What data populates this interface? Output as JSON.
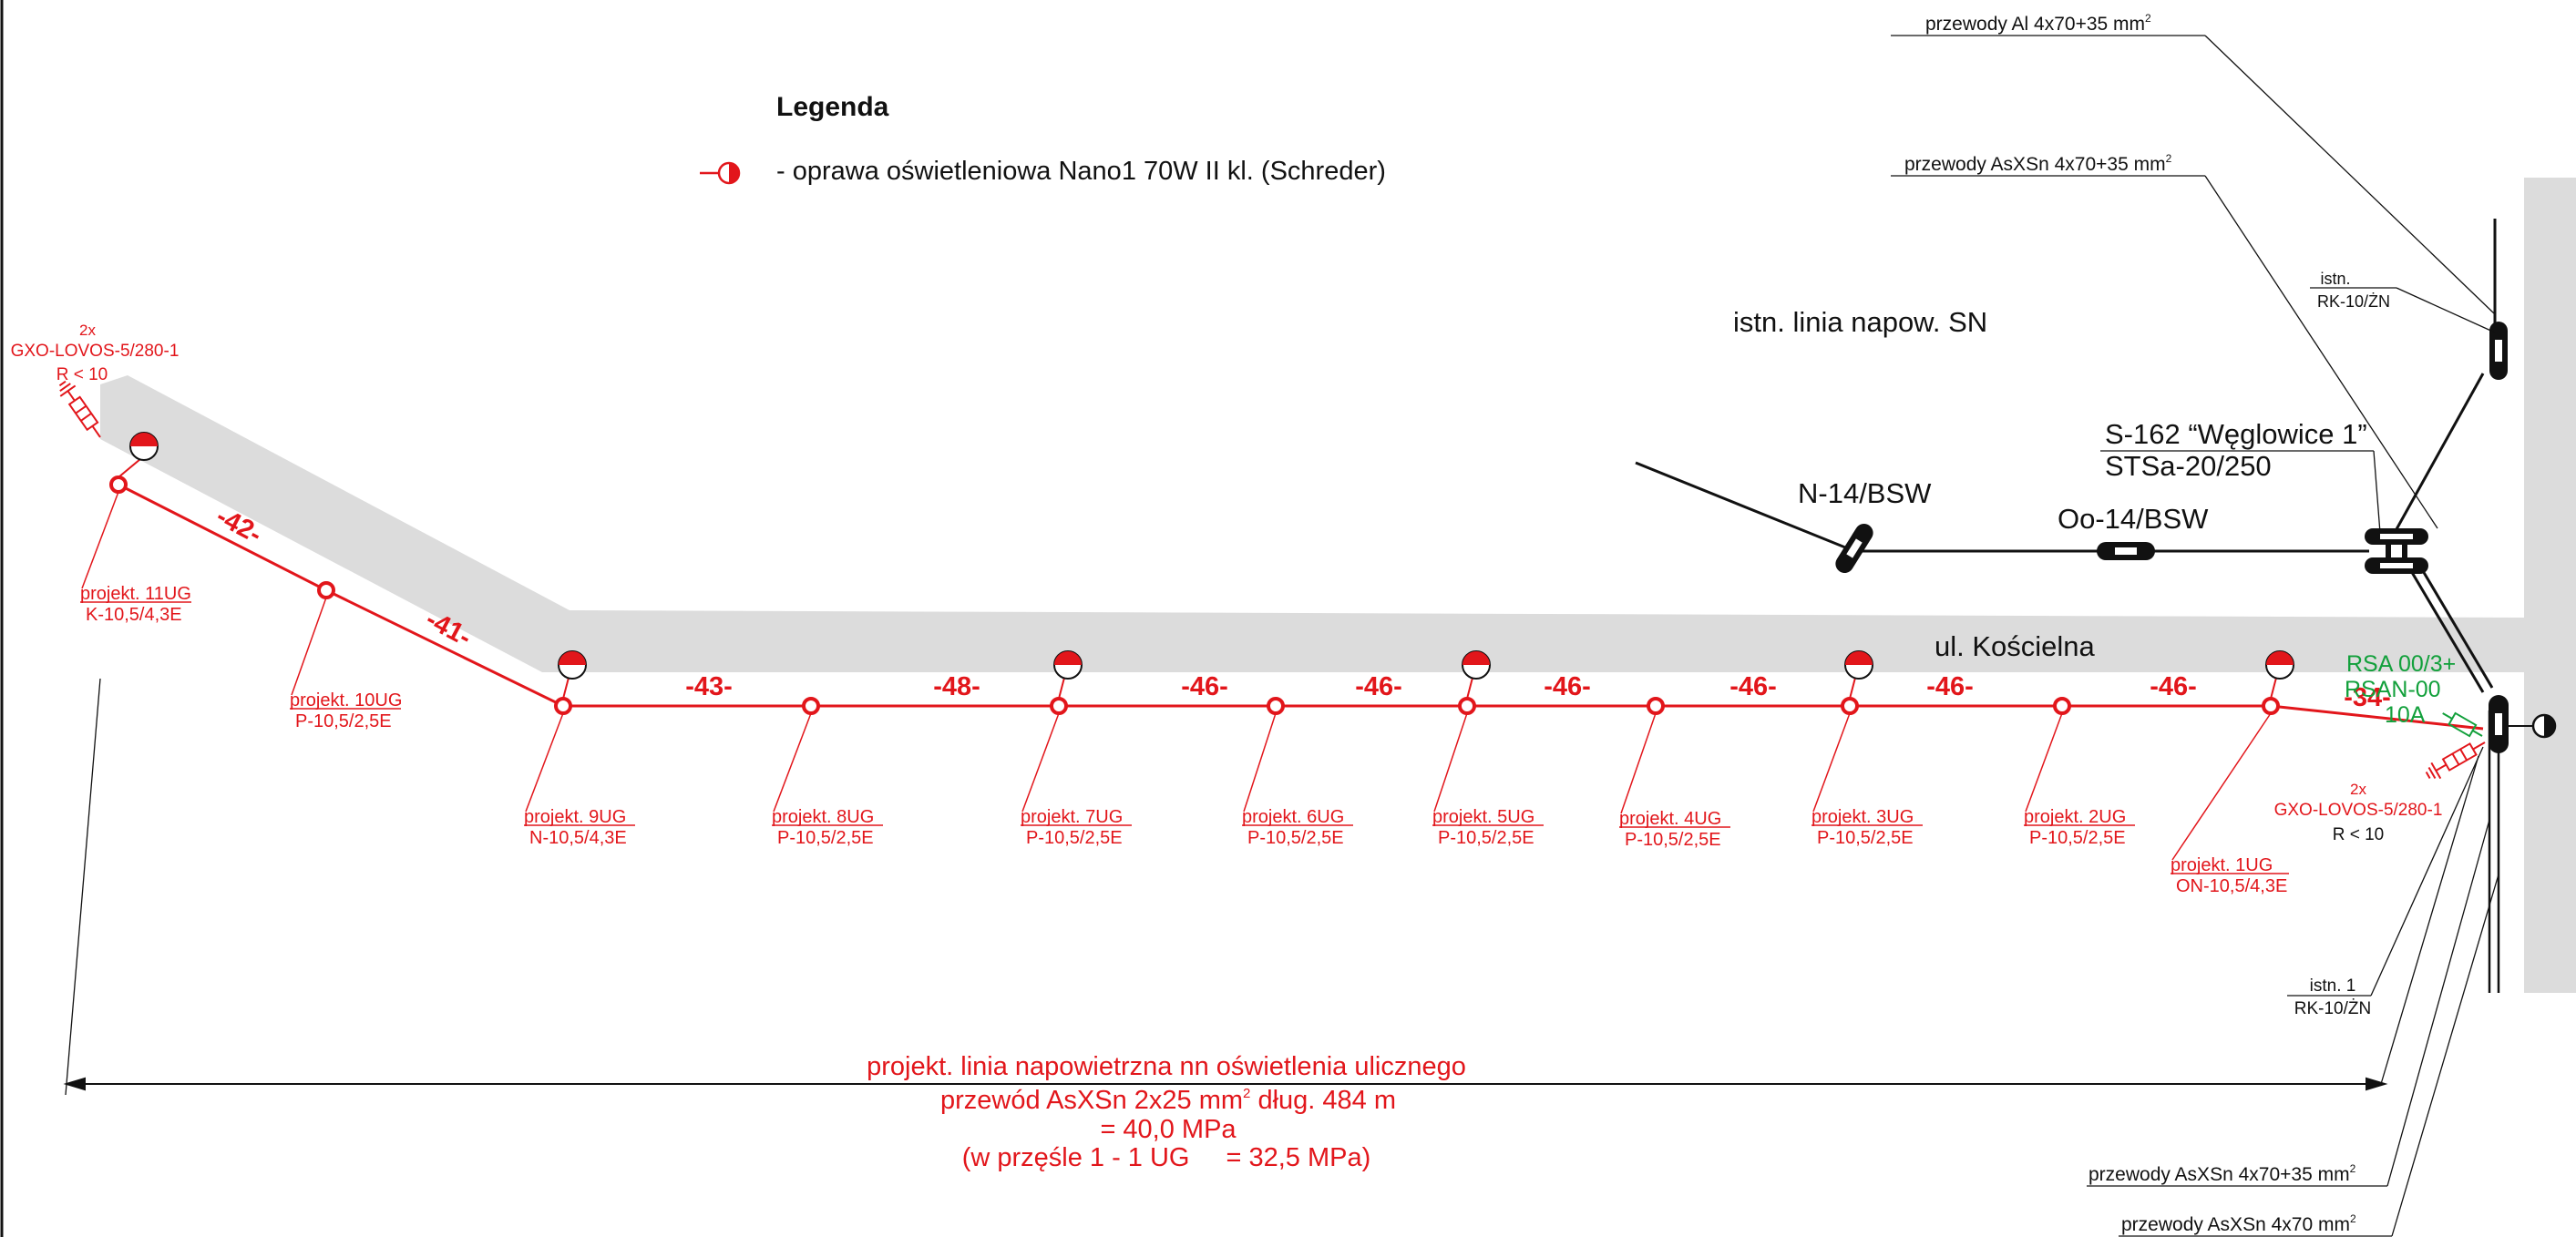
{
  "legend": {
    "title": "Legenda",
    "lamp_desc": "- oprawa oświetleniowa Nano1 70W II kl. (Schreder)"
  },
  "top_labels": {
    "al_wires": "przewody Al 4x70+35 mm",
    "asxsn_wires_top": "przewody AsXSn 4x70+35 mm",
    "istn_top_1": "istn.",
    "istn_top_2": "RK-10/ŻN",
    "istn_line": "istn. linia napow. SN",
    "station_1": "S-162 “Węglowice 1”",
    "station_2": "STSa-20/250",
    "n14": "N-14/BSW",
    "oo14": "Oo-14/BSW",
    "street": "ul. Kościelna",
    "rsa_1": "RSA 00/3+",
    "rsa_2": "RSAN-00",
    "rsa_3": "10A",
    "gxo_right_1": "2x",
    "gxo_right_2": "GXO-LOVOS-5/280-1",
    "gxo_right_3": "R < 10",
    "gxo_left_1": "2x",
    "gxo_left_2": "GXO-LOVOS-5/280-1",
    "gxo_left_3": "R < 10",
    "istn1_1": "istn. 1",
    "istn1_2": "RK-10/ŻN",
    "bottom_wires_1": "przewody AsXSn 4x70+35 mm",
    "bottom_wires_2": "przewody AsXSn 4x70 mm",
    "sup2": "2"
  },
  "spans": [
    "-42-",
    "-41-",
    "-43-",
    "-48-",
    "-46-",
    "-46-",
    "-46-",
    "-46-",
    "-46-",
    "-46-",
    "-34-"
  ],
  "poles": [
    {
      "name": "projekt. 11UG",
      "type": "K-10,5/4,3E"
    },
    {
      "name": "projekt. 10UG",
      "type": "P-10,5/2,5E"
    },
    {
      "name": "projekt. 9UG",
      "type": "N-10,5/4,3E"
    },
    {
      "name": "projekt. 8UG",
      "type": "P-10,5/2,5E"
    },
    {
      "name": "projekt. 7UG",
      "type": "P-10,5/2,5E"
    },
    {
      "name": "projekt. 6UG",
      "type": "P-10,5/2,5E"
    },
    {
      "name": "projekt. 5UG",
      "type": "P-10,5/2,5E"
    },
    {
      "name": "projekt. 4UG",
      "type": "P-10,5/2,5E"
    },
    {
      "name": "projekt. 3UG",
      "type": "P-10,5/2,5E"
    },
    {
      "name": "projekt. 2UG",
      "type": "P-10,5/2,5E"
    },
    {
      "name": "projekt. 1UG",
      "type": "ON-10,5/4,3E"
    }
  ],
  "bottom_text": {
    "line1": "projekt. linia napowietrzna nn oświetlenia ulicznego",
    "line2a": "przewód AsXSn 2x25 mm",
    "line2b": " dług. 484 m",
    "line3": "= 40,0 MPa",
    "line4a": "(w przęśle 1 - 1 UG",
    "line4b": "= 32,5 MPa)"
  },
  "colors": {
    "project_red": "#e2161b",
    "existing_black": "#111111",
    "rsa_green": "#12a03b",
    "road_gray": "#dcdcdc"
  }
}
